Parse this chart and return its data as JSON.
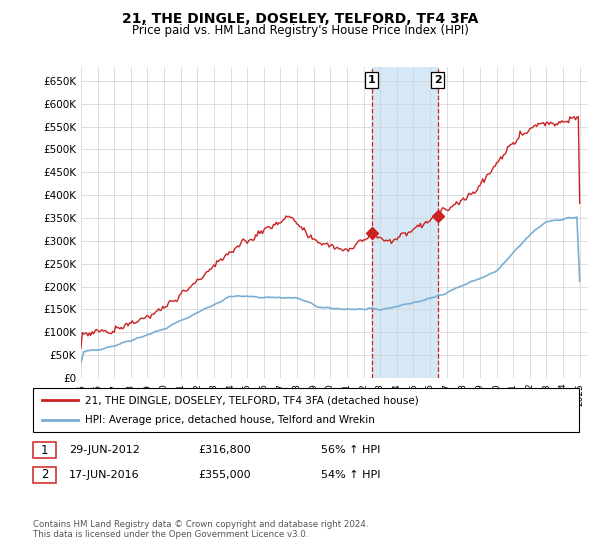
{
  "title": "21, THE DINGLE, DOSELEY, TELFORD, TF4 3FA",
  "subtitle": "Price paid vs. HM Land Registry's House Price Index (HPI)",
  "ylabel_ticks": [
    "£0",
    "£50K",
    "£100K",
    "£150K",
    "£200K",
    "£250K",
    "£300K",
    "£350K",
    "£400K",
    "£450K",
    "£500K",
    "£550K",
    "£600K",
    "£650K"
  ],
  "ytick_values": [
    0,
    50000,
    100000,
    150000,
    200000,
    250000,
    300000,
    350000,
    400000,
    450000,
    500000,
    550000,
    600000,
    650000
  ],
  "ylim": [
    0,
    680000
  ],
  "hpi_color": "#7aaed4",
  "price_color": "#cc2222",
  "highlight_color": "#d6e8f5",
  "sale1_date": 2012.49,
  "sale1_price": 316800,
  "sale2_date": 2016.46,
  "sale2_price": 355000,
  "legend_label_price": "21, THE DINGLE, DOSELEY, TELFORD, TF4 3FA (detached house)",
  "legend_label_hpi": "HPI: Average price, detached house, Telford and Wrekin",
  "annotation1_date": "29-JUN-2012",
  "annotation1_price": "£316,800",
  "annotation1_hpi": "56% ↑ HPI",
  "annotation2_date": "17-JUN-2016",
  "annotation2_price": "£355,000",
  "annotation2_hpi": "54% ↑ HPI",
  "footer": "Contains HM Land Registry data © Crown copyright and database right 2024.\nThis data is licensed under the Open Government Licence v3.0.",
  "xmin": 1995,
  "xmax": 2025.5
}
